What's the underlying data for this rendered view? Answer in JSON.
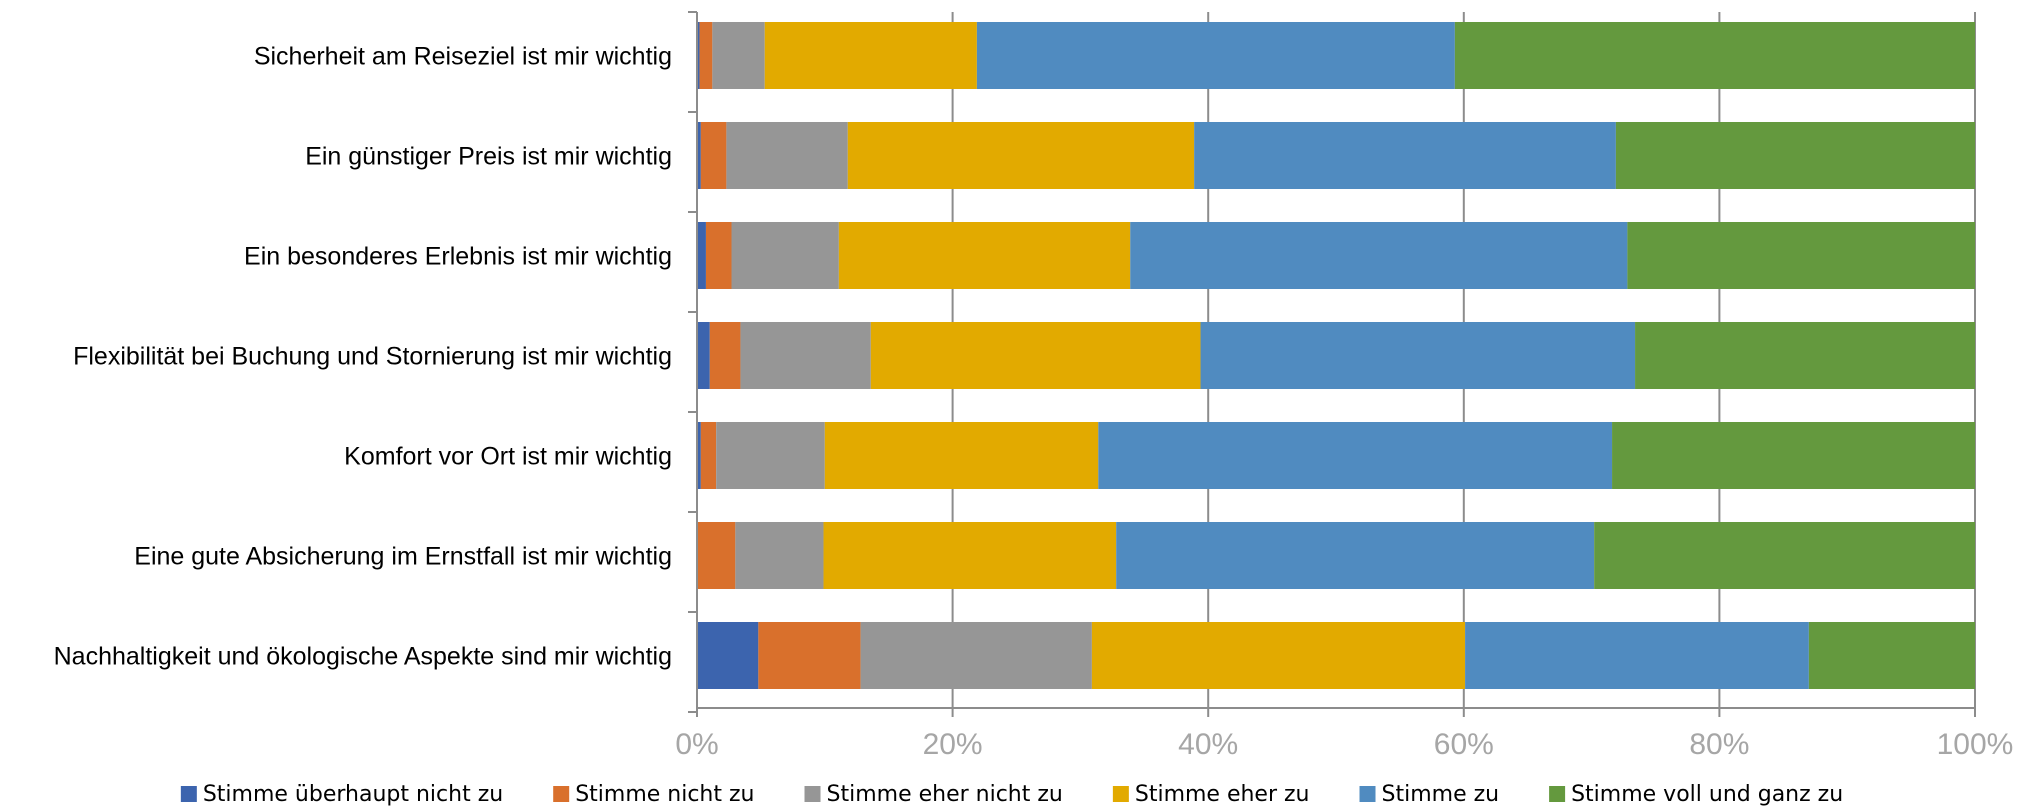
{
  "chart_data": {
    "type": "bar",
    "orientation": "horizontal",
    "stacked": "percent",
    "categories": [
      "Sicherheit am Reiseziel ist mir wichtig",
      "Ein günstiger Preis ist mir wichtig",
      "Ein besonderes Erlebnis ist mir wichtig",
      "Flexibilität bei Buchung und Stornierung ist mir wichtig",
      "Komfort vor Ort ist mir wichtig",
      "Eine gute Absicherung im Ernstfall ist mir wichtig",
      "Nachhaltigkeit und ökologische Aspekte sind mir wichtig"
    ],
    "series": [
      {
        "name": "Stimme überhaupt nicht zu",
        "color": "#3c64ae",
        "values": [
          0.2,
          0.3,
          0.7,
          1.0,
          0.3,
          0.0,
          4.8
        ]
      },
      {
        "name": "Stimme nicht zu",
        "color": "#d9702c",
        "values": [
          1.0,
          2.0,
          2.0,
          2.4,
          1.2,
          3.0,
          8.0
        ]
      },
      {
        "name": "Stimme eher nicht zu",
        "color": "#969696",
        "values": [
          4.1,
          9.5,
          8.4,
          10.2,
          8.5,
          6.9,
          18.1
        ]
      },
      {
        "name": "Stimme eher zu",
        "color": "#e2aa00",
        "values": [
          16.6,
          27.1,
          22.8,
          25.8,
          21.4,
          22.9,
          29.2
        ]
      },
      {
        "name": "Stimme zu",
        "color": "#508bc0",
        "values": [
          37.4,
          33.0,
          38.9,
          34.0,
          40.2,
          37.4,
          26.9
        ]
      },
      {
        "name": "Stimme voll und ganz zu",
        "color": "#64993e",
        "values": [
          40.7,
          28.1,
          27.2,
          26.6,
          28.4,
          29.8,
          13.0
        ]
      }
    ],
    "xlim": [
      0,
      100
    ],
    "xticks": [
      "0%",
      "20%",
      "40%",
      "60%",
      "80%",
      "100%"
    ],
    "grid": true,
    "legend": "bottom",
    "title": "",
    "xlabel": "",
    "ylabel": ""
  }
}
